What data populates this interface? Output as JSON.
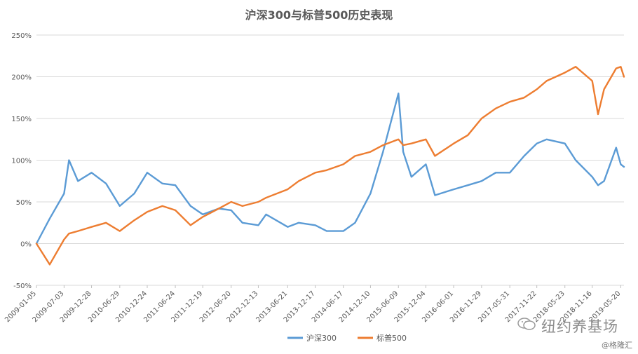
{
  "watermark": {
    "brand": "纽约养基场",
    "handle": "@格隆汇"
  },
  "chart_data": {
    "type": "line",
    "title": "沪深300与标普500历史表现",
    "ylim": [
      -50,
      250
    ],
    "y_ticks": [
      "-50%",
      "0%",
      "50%",
      "100%",
      "150%",
      "200%",
      "250%"
    ],
    "x_tick_labels": [
      "2009-01-05",
      "2009-07-03",
      "2009-12-28",
      "2010-06-29",
      "2010-12-24",
      "2011-06-24",
      "2011-12-19",
      "2012-06-20",
      "2012-12-13",
      "2013-06-21",
      "2013-12-17",
      "2014-06-17",
      "2014-12-10",
      "2015-06-09",
      "2015-12-04",
      "2016-06-01",
      "2016-11-29",
      "2017-05-31",
      "2017-11-22",
      "2018-05-23",
      "2018-11-16",
      "2019-05-20"
    ],
    "x": [
      "2009-01-05",
      "2009-04-01",
      "2009-07-03",
      "2009-08-04",
      "2009-10-01",
      "2009-12-28",
      "2010-04-01",
      "2010-06-29",
      "2010-10-01",
      "2010-12-24",
      "2011-04-01",
      "2011-06-24",
      "2011-10-01",
      "2011-12-19",
      "2012-04-01",
      "2012-06-20",
      "2012-09-01",
      "2012-12-13",
      "2013-02-01",
      "2013-06-21",
      "2013-09-01",
      "2013-12-17",
      "2014-03-01",
      "2014-06-17",
      "2014-09-01",
      "2014-12-10",
      "2015-03-01",
      "2015-06-09",
      "2015-07-10",
      "2015-09-01",
      "2015-12-04",
      "2016-02-01",
      "2016-06-01",
      "2016-09-01",
      "2016-11-29",
      "2017-03-01",
      "2017-05-31",
      "2017-09-01",
      "2017-11-22",
      "2018-01-25",
      "2018-05-23",
      "2018-08-01",
      "2018-11-16",
      "2018-12-24",
      "2019-02-01",
      "2019-04-20",
      "2019-05-20",
      "2019-06-10"
    ],
    "series": [
      {
        "name": "沪深300",
        "color": "#5b9bd5",
        "values": [
          0,
          30,
          60,
          100,
          75,
          85,
          72,
          45,
          60,
          85,
          72,
          70,
          45,
          35,
          42,
          40,
          25,
          22,
          35,
          20,
          25,
          22,
          15,
          15,
          25,
          60,
          110,
          180,
          110,
          80,
          95,
          58,
          65,
          70,
          75,
          85,
          85,
          105,
          120,
          125,
          120,
          100,
          80,
          70,
          75,
          115,
          95,
          92
        ]
      },
      {
        "name": "标普500",
        "color": "#ed7d31",
        "values": [
          0,
          -25,
          5,
          12,
          15,
          20,
          25,
          15,
          28,
          38,
          45,
          40,
          22,
          32,
          42,
          50,
          45,
          50,
          55,
          65,
          75,
          85,
          88,
          95,
          105,
          110,
          118,
          125,
          118,
          120,
          125,
          105,
          120,
          130,
          150,
          162,
          170,
          175,
          185,
          195,
          205,
          212,
          195,
          155,
          185,
          210,
          212,
          200
        ]
      }
    ]
  }
}
